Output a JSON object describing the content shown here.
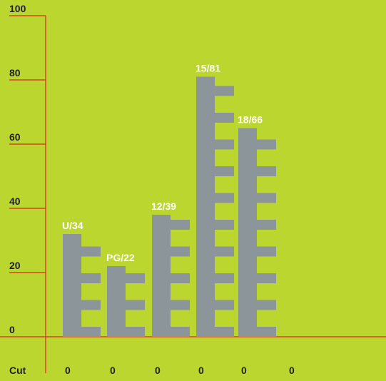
{
  "chart_data": {
    "type": "bar",
    "ylim": [
      0,
      100
    ],
    "yticks": [
      0,
      20,
      40,
      60,
      80,
      100
    ],
    "grid": false,
    "bars": [
      {
        "label": "U/34",
        "value": 32
      },
      {
        "label": "PG/22",
        "value": 22
      },
      {
        "label": "12/39",
        "value": 38
      },
      {
        "label": "15/81",
        "value": 81
      },
      {
        "label": "18/66",
        "value": 65
      }
    ],
    "cut_row": {
      "label": "Cut",
      "values": [
        "0",
        "0",
        "0",
        "0",
        "0",
        "0"
      ]
    }
  },
  "colors": {
    "background": "#bcd630",
    "axis": "#d62a1e",
    "bar": "#8c969a",
    "bar_label": "#ffffff",
    "text": "#222222"
  }
}
